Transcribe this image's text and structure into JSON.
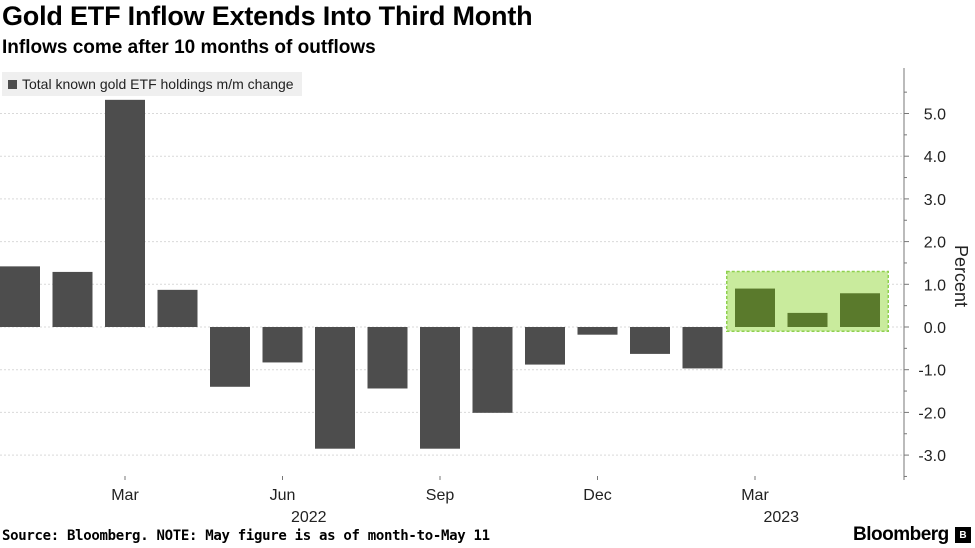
{
  "header": {
    "title": "Gold ETF Inflow Extends Into Third Month",
    "subtitle": "Inflows come after 10 months of outflows"
  },
  "footer": {
    "source": "Source: Bloomberg. NOTE: May figure is as of month-to-May 11",
    "brand": "Bloomberg",
    "badge": "B"
  },
  "colors": {
    "bar": "#4d4d4d",
    "highlight_bar": "#5a7a2c",
    "highlight_fill": "#c9eb9d",
    "highlight_border": "#8fd14f",
    "grid": "#d9d9d9",
    "axis": "#777777"
  },
  "chart_data": {
    "type": "bar",
    "title": "Gold ETF Inflow Extends Into Third Month",
    "subtitle": "Inflows come after 10 months of outflows",
    "legend": [
      "Total known gold ETF holdings m/m change"
    ],
    "ylabel": "Percent",
    "xlabel": "",
    "ylim": [
      -3.4,
      5.8
    ],
    "yticks": [
      -3.0,
      -2.0,
      -1.0,
      0.0,
      1.0,
      2.0,
      3.0,
      4.0,
      5.0
    ],
    "ytick_labels": [
      "-3.0",
      "-2.0",
      "-1.0",
      "0.0",
      "1.0",
      "2.0",
      "3.0",
      "4.0",
      "5.0"
    ],
    "grid": true,
    "categories": [
      "Jan 2022",
      "Feb 2022",
      "Mar 2022",
      "Apr 2022",
      "May 2022",
      "Jun 2022",
      "Jul 2022",
      "Aug 2022",
      "Sep 2022",
      "Oct 2022",
      "Nov 2022",
      "Dec 2022",
      "Jan 2023",
      "Feb 2023",
      "Mar 2023",
      "Apr 2023",
      "May 2023"
    ],
    "values": [
      1.42,
      1.29,
      5.32,
      0.87,
      -1.4,
      -0.83,
      -2.85,
      -1.44,
      -2.85,
      -2.01,
      -0.88,
      -0.18,
      -0.63,
      -0.97,
      0.9,
      0.33,
      0.79
    ],
    "xtick_labels": [
      {
        "label": "Mar",
        "index": 2
      },
      {
        "label": "Jun",
        "index": 5
      },
      {
        "label": "Sep",
        "index": 8
      },
      {
        "label": "Dec",
        "index": 11
      },
      {
        "label": "Mar",
        "index": 14
      }
    ],
    "year_labels": [
      {
        "label": "2022",
        "index": 5.5
      },
      {
        "label": "2023",
        "index": 14.5
      }
    ],
    "highlight": {
      "from_index": 13.5,
      "to_index": 16.5,
      "y_range": [
        -0.1,
        1.3
      ]
    }
  }
}
